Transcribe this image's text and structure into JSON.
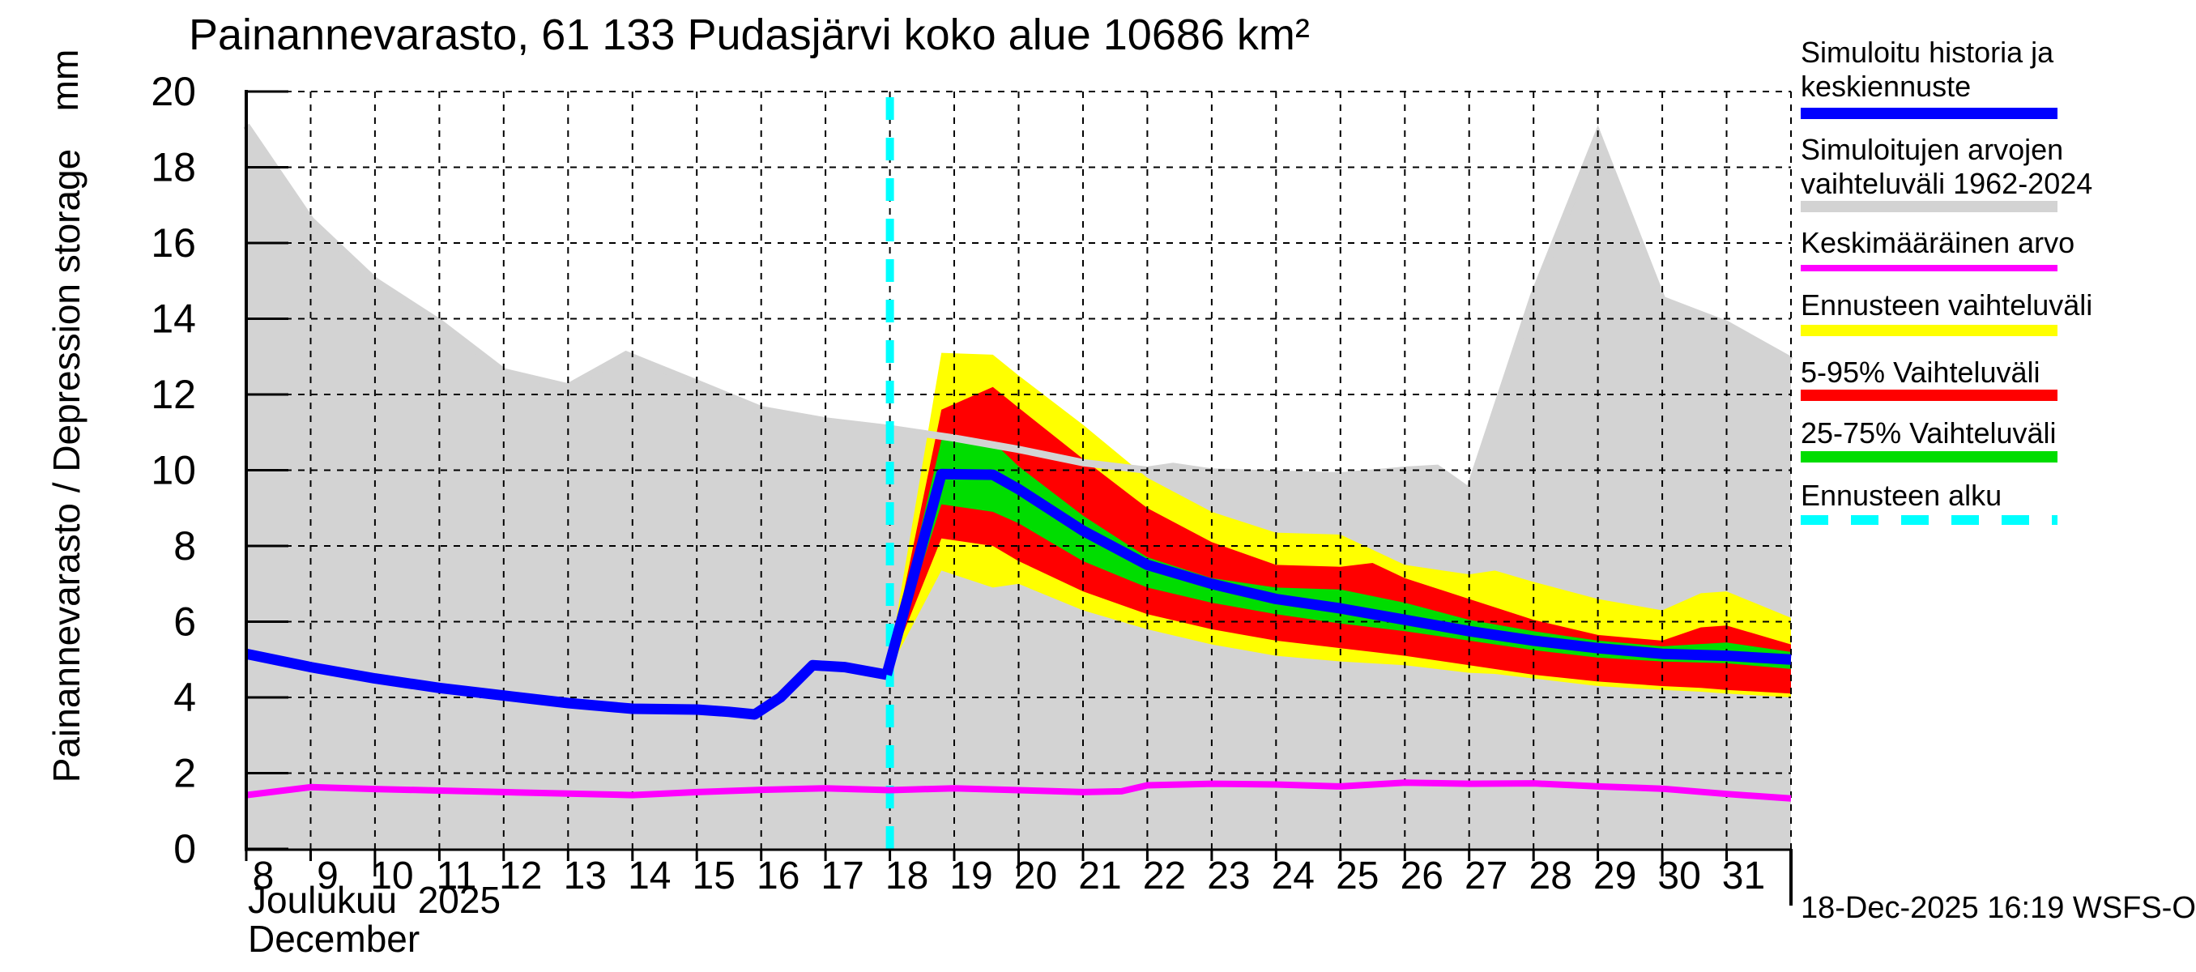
{
  "title": "Painannevarasto, 61 133 Pudasjärvi koko alue 10686 km²",
  "y_axis": {
    "unit": "mm",
    "label": "Painannevarasto / Depression storage",
    "tick_labels": [
      "0",
      "2",
      "4",
      "6",
      "8",
      "10",
      "12",
      "14",
      "16",
      "18",
      "20"
    ],
    "min": 0,
    "max": 20
  },
  "x_axis": {
    "month_line1": "Joulukuu  2025",
    "month_line2": "December",
    "day_labels": [
      "8",
      "9",
      "10",
      "11",
      "12",
      "13",
      "14",
      "15",
      "16",
      "17",
      "18",
      "19",
      "20",
      "21",
      "22",
      "23",
      "24",
      "25",
      "26",
      "27",
      "28",
      "29",
      "30",
      "31"
    ],
    "first_day": 8,
    "domain_min": 8,
    "domain_max": 32,
    "major_tick_days": [
      10,
      20,
      30
    ]
  },
  "footer_timestamp": "18-Dec-2025 16:19 WSFS-O",
  "legend": [
    {
      "label": "Simuloitu historia ja\nkeskiennuste",
      "color": "#0000ff",
      "swatch": "bar"
    },
    {
      "label": "Simuloitujen arvojen\nvaihteluväli 1962-2024",
      "color": "#d3d3d3",
      "swatch": "bar"
    },
    {
      "label": "Keskimääräinen arvo",
      "color": "#ff00ff",
      "swatch": "line"
    },
    {
      "label": "Ennusteen vaihteluväli",
      "color": "#ffff00",
      "swatch": "bar"
    },
    {
      "label": "5-95% Vaihteluväli",
      "color": "#ff0000",
      "swatch": "bar"
    },
    {
      "label": "25-75% Vaihteluväli",
      "color": "#00dd00",
      "swatch": "bar"
    },
    {
      "label": "Ennusteen alku",
      "color": "#00ffff",
      "swatch": "dashed"
    }
  ],
  "chart_data": {
    "type": "area",
    "title": "Painannevarasto, 61 133 Pudasjärvi koko alue 10686 km²",
    "xlabel": "Joulukuu 2025 / December, day of month",
    "ylabel": "Painannevarasto / Depression storage (mm)",
    "ylim": [
      0,
      20
    ],
    "xlim_days": [
      8,
      32
    ],
    "grid": true,
    "legend_position": "right",
    "forecast_start_day": 18,
    "colors": {
      "history_median": "#0000ff",
      "sim_range": "#d3d3d3",
      "mean": "#ff00ff",
      "forecast_range": "#ffff00",
      "p5_95": "#ff0000",
      "p25_75": "#00dd00",
      "forecast_start": "#00ffff",
      "grid": "#000000"
    },
    "series": {
      "sim_range": {
        "name": "Simuloitujen arvojen vaihteluväli 1962-2024",
        "x": [
          8,
          9,
          10,
          11,
          12,
          13,
          13.9,
          15,
          16,
          17,
          18,
          19,
          20,
          21,
          22,
          22.4,
          23,
          24,
          25,
          26,
          26.5,
          27,
          28,
          29,
          30,
          31,
          32
        ],
        "upper": [
          19.1,
          16.6,
          15.0,
          13.9,
          12.6,
          12.2,
          13.05,
          12.3,
          11.6,
          11.3,
          11.1,
          10.85,
          10.55,
          10.2,
          10.0,
          10.1,
          9.95,
          9.9,
          9.85,
          10.0,
          10.05,
          9.45,
          14.6,
          18.85,
          14.5,
          13.85,
          12.9
        ],
        "lower_flat": 0
      },
      "history": {
        "name": "Simuloitu historia",
        "x": [
          8,
          9,
          10,
          11,
          12,
          13,
          14,
          15,
          15.5,
          15.9,
          16.3,
          16.8,
          17.3,
          17.95
        ],
        "y": [
          5.15,
          4.8,
          4.5,
          4.25,
          4.05,
          3.85,
          3.7,
          3.68,
          3.62,
          3.55,
          4.0,
          4.85,
          4.8,
          4.6
        ]
      },
      "forecast_median": {
        "name": "Keskiennuste",
        "x": [
          17.95,
          18.8,
          19.6,
          20,
          21,
          22,
          23,
          24,
          25,
          26,
          27,
          28,
          29,
          30,
          31,
          32
        ],
        "y": [
          4.6,
          9.9,
          9.88,
          9.5,
          8.4,
          7.5,
          7.0,
          6.6,
          6.35,
          6.05,
          5.75,
          5.5,
          5.3,
          5.15,
          5.1,
          5.0
        ]
      },
      "forecast_range": {
        "name": "Ennusteen vaihteluväli",
        "x": [
          17.95,
          18.8,
          19.6,
          20,
          21,
          22,
          23,
          24,
          25,
          26,
          27,
          27.4,
          28,
          29,
          30,
          30.6,
          31,
          32
        ],
        "upper": [
          4.6,
          13.1,
          13.05,
          12.5,
          11.2,
          9.8,
          8.9,
          8.35,
          8.3,
          7.5,
          7.25,
          7.35,
          7.05,
          6.6,
          6.3,
          6.75,
          6.8,
          6.1
        ],
        "lower": [
          4.6,
          7.35,
          6.9,
          7.0,
          6.3,
          5.8,
          5.4,
          5.1,
          4.95,
          4.85,
          4.65,
          4.62,
          4.5,
          4.3,
          4.2,
          4.15,
          4.1,
          4.0
        ]
      },
      "p5_95": {
        "name": "5-95% Vaihteluväli",
        "x": [
          17.95,
          18.8,
          19.6,
          20,
          21,
          22,
          23,
          24,
          25,
          25.5,
          26,
          27,
          28,
          29,
          30,
          30.6,
          31,
          32
        ],
        "upper": [
          4.6,
          11.6,
          12.2,
          11.65,
          10.3,
          9.0,
          8.1,
          7.5,
          7.45,
          7.55,
          7.15,
          6.6,
          6.05,
          5.65,
          5.5,
          5.85,
          5.9,
          5.4
        ],
        "lower": [
          4.6,
          8.2,
          8.0,
          7.6,
          6.8,
          6.2,
          5.8,
          5.5,
          5.3,
          5.2,
          5.1,
          4.85,
          4.6,
          4.42,
          4.3,
          4.25,
          4.2,
          4.1
        ]
      },
      "p25_75": {
        "name": "25-75% Vaihteluväli",
        "x": [
          17.95,
          18.8,
          19.6,
          20,
          21,
          22,
          23,
          24,
          25,
          26,
          27,
          28,
          29,
          30,
          31,
          32
        ],
        "upper": [
          4.6,
          10.8,
          10.75,
          10.1,
          8.8,
          7.7,
          7.15,
          6.9,
          6.85,
          6.5,
          6.05,
          5.75,
          5.5,
          5.35,
          5.45,
          5.2
        ],
        "lower": [
          4.6,
          9.1,
          8.9,
          8.6,
          7.6,
          6.9,
          6.5,
          6.2,
          5.95,
          5.75,
          5.5,
          5.25,
          5.05,
          4.95,
          4.9,
          4.75
        ]
      },
      "mean": {
        "name": "Keskimääräinen arvo",
        "x": [
          8,
          9,
          10,
          11,
          12,
          13,
          14,
          15,
          16,
          17,
          18,
          19,
          20,
          21,
          21.6,
          22,
          23,
          24,
          25,
          26,
          27,
          28,
          29,
          30,
          31,
          32
        ],
        "y": [
          1.42,
          1.63,
          1.58,
          1.54,
          1.5,
          1.46,
          1.42,
          1.5,
          1.56,
          1.6,
          1.55,
          1.6,
          1.55,
          1.5,
          1.52,
          1.68,
          1.72,
          1.7,
          1.65,
          1.75,
          1.72,
          1.73,
          1.65,
          1.59,
          1.45,
          1.33
        ]
      }
    }
  }
}
